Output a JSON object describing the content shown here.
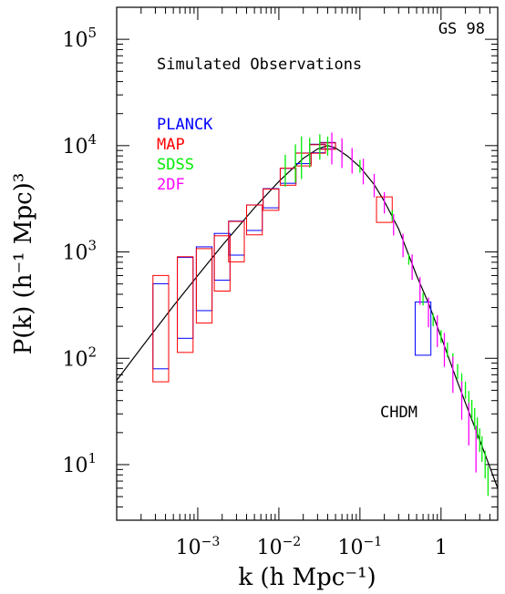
{
  "chart_data": {
    "type": "line",
    "title": "",
    "xlabel": "k (h Mpc⁻¹)",
    "ylabel": "P(k) (h⁻¹ Mpc)³",
    "xscale": "log",
    "yscale": "log",
    "xlim": [
      0.0001,
      5.0
    ],
    "ylim": [
      3.0,
      200000
    ],
    "grid": false,
    "x_ticks": [
      {
        "value": 0.001,
        "base": "10",
        "exp": "−3"
      },
      {
        "value": 0.01,
        "base": "10",
        "exp": "−2"
      },
      {
        "value": 0.1,
        "base": "10",
        "exp": "−1"
      },
      {
        "value": 1,
        "base": "1",
        "exp": ""
      }
    ],
    "y_ticks": [
      {
        "value": 10,
        "base": "10",
        "exp": "1"
      },
      {
        "value": 100,
        "base": "10",
        "exp": "2"
      },
      {
        "value": 1000,
        "base": "10",
        "exp": "3"
      },
      {
        "value": 10000,
        "base": "10",
        "exp": "4"
      },
      {
        "value": 100000,
        "base": "10",
        "exp": "5"
      }
    ],
    "annotations": [
      {
        "text": "GS 98"
      },
      {
        "text": "Simulated Observations"
      },
      {
        "text": "CHDM"
      }
    ],
    "legend_position": "upper-left",
    "series": [
      {
        "name": "CHDM",
        "color": "#000000",
        "style": "line",
        "x": [
          0.0001,
          0.0002,
          0.0005,
          0.001,
          0.002,
          0.005,
          0.01,
          0.02,
          0.03,
          0.04,
          0.05,
          0.07,
          0.1,
          0.15,
          0.2,
          0.3,
          0.5,
          0.7,
          1.0,
          1.5,
          2.0,
          3.0,
          5.0
        ],
        "y": [
          62,
          125,
          310,
          600,
          1150,
          2600,
          4600,
          7600,
          9300,
          10000,
          9500,
          8000,
          6300,
          4300,
          3000,
          1650,
          600,
          330,
          160,
          68,
          38,
          17,
          6
        ]
      },
      {
        "name": "PLANCK",
        "color": "#0000ff",
        "style": "error-boxes",
        "x": [
          0.00035,
          0.0007,
          0.0012,
          0.002,
          0.003,
          0.005,
          0.008,
          0.013,
          0.02,
          0.03,
          0.04,
          0.6
        ],
        "y": [
          200,
          370,
          560,
          900,
          1350,
          2100,
          3200,
          5200,
          7600,
          9400,
          10000,
          190
        ],
        "err": [
          0.4,
          0.38,
          0.3,
          0.22,
          0.16,
          0.12,
          0.09,
          0.07,
          0.05,
          0.04,
          0.03,
          0.25
        ]
      },
      {
        "name": "MAP",
        "color": "#ff0000",
        "style": "error-boxes",
        "x": [
          0.00035,
          0.0007,
          0.0012,
          0.002,
          0.003,
          0.005,
          0.008,
          0.013,
          0.02,
          0.03,
          0.04,
          0.2
        ],
        "y": [
          190,
          320,
          480,
          780,
          1250,
          2000,
          3100,
          5100,
          7400,
          9300,
          9900,
          2500
        ],
        "err": [
          0.5,
          0.45,
          0.35,
          0.26,
          0.19,
          0.14,
          0.1,
          0.08,
          0.06,
          0.04,
          0.03,
          0.12
        ]
      },
      {
        "name": "SDSS",
        "color": "#00ee00",
        "style": "error-bars",
        "x": [
          0.012,
          0.016,
          0.019,
          0.024,
          0.032,
          0.04,
          0.06,
          0.1,
          0.15,
          0.25,
          0.4,
          0.6,
          0.8,
          1.0,
          1.2,
          1.4,
          1.6,
          1.8,
          2.0,
          2.2,
          2.4,
          2.6,
          2.8,
          3.0,
          3.2,
          3.5,
          3.8
        ],
        "y": [
          5800,
          6800,
          7700,
          8600,
          9700,
          9900,
          8900,
          6400,
          4300,
          2200,
          850,
          360,
          230,
          160,
          120,
          95,
          75,
          60,
          50,
          40,
          33,
          27,
          22,
          17,
          14,
          10,
          7
        ],
        "err": [
          0.15,
          0.18,
          0.2,
          0.14,
          0.12,
          0.09,
          0.07,
          0.06,
          0.05,
          0.05,
          0.05,
          0.06,
          0.06,
          0.06,
          0.07,
          0.07,
          0.07,
          0.08,
          0.08,
          0.09,
          0.09,
          0.1,
          0.1,
          0.11,
          0.12,
          0.13,
          0.14
        ]
      },
      {
        "name": "2DF",
        "color": "#ff00ff",
        "style": "error-bars",
        "x": [
          0.045,
          0.06,
          0.08,
          0.11,
          0.15,
          0.2,
          0.26,
          0.34,
          0.44,
          0.55,
          0.7,
          0.9,
          1.1,
          1.4,
          1.8,
          2.2,
          2.7
        ],
        "y": [
          9400,
          8500,
          7200,
          5700,
          4200,
          2900,
          1800,
          1150,
          720,
          430,
          270,
          180,
          120,
          70,
          40,
          24,
          14
        ],
        "err": [
          0.15,
          0.14,
          0.12,
          0.12,
          0.11,
          0.1,
          0.1,
          0.11,
          0.12,
          0.13,
          0.14,
          0.15,
          0.16,
          0.17,
          0.18,
          0.2,
          0.22
        ]
      }
    ]
  }
}
